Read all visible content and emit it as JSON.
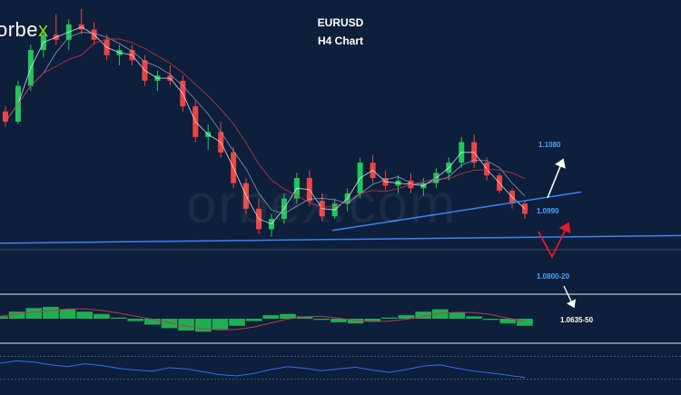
{
  "brand": {
    "logo_text": "orbe",
    "logo_accent": "x",
    "watermark": "orbex.com"
  },
  "header": {
    "symbol": "EURUSD",
    "timeframe": "H4 Chart"
  },
  "colors": {
    "background": "#0d1f3a",
    "bull": "#22c55e",
    "bear": "#ef4444",
    "trendline": "#3b82f6",
    "level_label": "#4aa3ff",
    "forecast_up": "#ffffff",
    "forecast_reversal": "#e11d2b",
    "macd_hist": "#1fbf55",
    "rsi": "#2f6bff"
  },
  "levels": [
    {
      "price": "1.1080",
      "color": "blue"
    },
    {
      "price": "1.0990",
      "color": "blue"
    },
    {
      "price": "1.0800-20",
      "color": "blue"
    },
    {
      "price": "1.0635-50",
      "color": "white"
    }
  ],
  "chart_data": {
    "type": "candlestick",
    "title": "EURUSD",
    "subtitle": "H4 Chart",
    "xlabel": "",
    "ylabel": "",
    "series": [
      {
        "type": "ohlc",
        "values": [
          [
            1.13,
            1.132,
            1.124,
            1.126
          ],
          [
            1.126,
            1.142,
            1.125,
            1.14
          ],
          [
            1.14,
            1.156,
            1.138,
            1.154
          ],
          [
            1.154,
            1.162,
            1.151,
            1.16
          ],
          [
            1.16,
            1.168,
            1.156,
            1.158
          ],
          [
            1.158,
            1.166,
            1.154,
            1.164
          ],
          [
            1.164,
            1.17,
            1.16,
            1.162
          ],
          [
            1.162,
            1.165,
            1.156,
            1.158
          ],
          [
            1.158,
            1.16,
            1.15,
            1.152
          ],
          [
            1.152,
            1.156,
            1.148,
            1.154
          ],
          [
            1.154,
            1.156,
            1.148,
            1.15
          ],
          [
            1.15,
            1.152,
            1.14,
            1.142
          ],
          [
            1.142,
            1.146,
            1.138,
            1.144
          ],
          [
            1.144,
            1.148,
            1.14,
            1.142
          ],
          [
            1.142,
            1.144,
            1.13,
            1.132
          ],
          [
            1.132,
            1.134,
            1.118,
            1.12
          ],
          [
            1.12,
            1.125,
            1.115,
            1.122
          ],
          [
            1.122,
            1.126,
            1.112,
            1.114
          ],
          [
            1.114,
            1.116,
            1.1,
            1.102
          ],
          [
            1.102,
            1.104,
            1.09,
            1.092
          ],
          [
            1.092,
            1.096,
            1.082,
            1.084
          ],
          [
            1.084,
            1.09,
            1.081,
            1.088
          ],
          [
            1.088,
            1.098,
            1.086,
            1.096
          ],
          [
            1.096,
            1.106,
            1.094,
            1.104
          ],
          [
            1.104,
            1.107,
            1.093,
            1.095
          ],
          [
            1.095,
            1.098,
            1.087,
            1.089
          ],
          [
            1.089,
            1.096,
            1.088,
            1.094
          ],
          [
            1.094,
            1.1,
            1.091,
            1.098
          ],
          [
            1.098,
            1.112,
            1.096,
            1.11
          ],
          [
            1.11,
            1.113,
            1.102,
            1.104
          ],
          [
            1.104,
            1.107,
            1.099,
            1.101
          ],
          [
            1.101,
            1.105,
            1.098,
            1.103
          ],
          [
            1.103,
            1.106,
            1.098,
            1.1
          ],
          [
            1.1,
            1.104,
            1.097,
            1.102
          ],
          [
            1.102,
            1.108,
            1.1,
            1.106
          ],
          [
            1.106,
            1.112,
            1.103,
            1.11
          ],
          [
            1.11,
            1.12,
            1.108,
            1.118
          ],
          [
            1.118,
            1.121,
            1.108,
            1.11
          ],
          [
            1.11,
            1.112,
            1.103,
            1.105
          ],
          [
            1.105,
            1.106,
            1.098,
            1.099
          ],
          [
            1.099,
            1.1,
            1.092,
            1.094
          ],
          [
            1.094,
            1.095,
            1.088,
            1.09
          ]
        ]
      }
    ],
    "levels": [
      1.108,
      1.099,
      1.081,
      1.0643
    ],
    "ylim": [
      1.06,
      1.17
    ],
    "indicators": [
      {
        "name": "MACD histogram",
        "values": [
          0.2,
          0.6,
          0.9,
          1.0,
          0.8,
          0.6,
          0.4,
          0.1,
          -0.2,
          -0.5,
          -0.8,
          -1.0,
          -1.1,
          -0.9,
          -0.6,
          -0.2,
          0.3,
          0.4,
          0.2,
          -0.1,
          -0.3,
          -0.4,
          -0.2,
          0.1,
          0.3,
          0.6,
          0.8,
          0.5,
          0.2,
          -0.1,
          -0.4,
          -0.6
        ]
      },
      {
        "name": "RSI",
        "values": [
          58,
          62,
          60,
          55,
          52,
          57,
          54,
          49,
          46,
          44,
          50,
          48,
          43,
          38,
          36,
          40,
          47,
          52,
          49,
          45,
          48,
          51,
          46,
          42,
          47,
          53,
          55,
          49,
          44,
          41,
          37,
          33
        ]
      }
    ],
    "grid": false,
    "legend": "none"
  }
}
